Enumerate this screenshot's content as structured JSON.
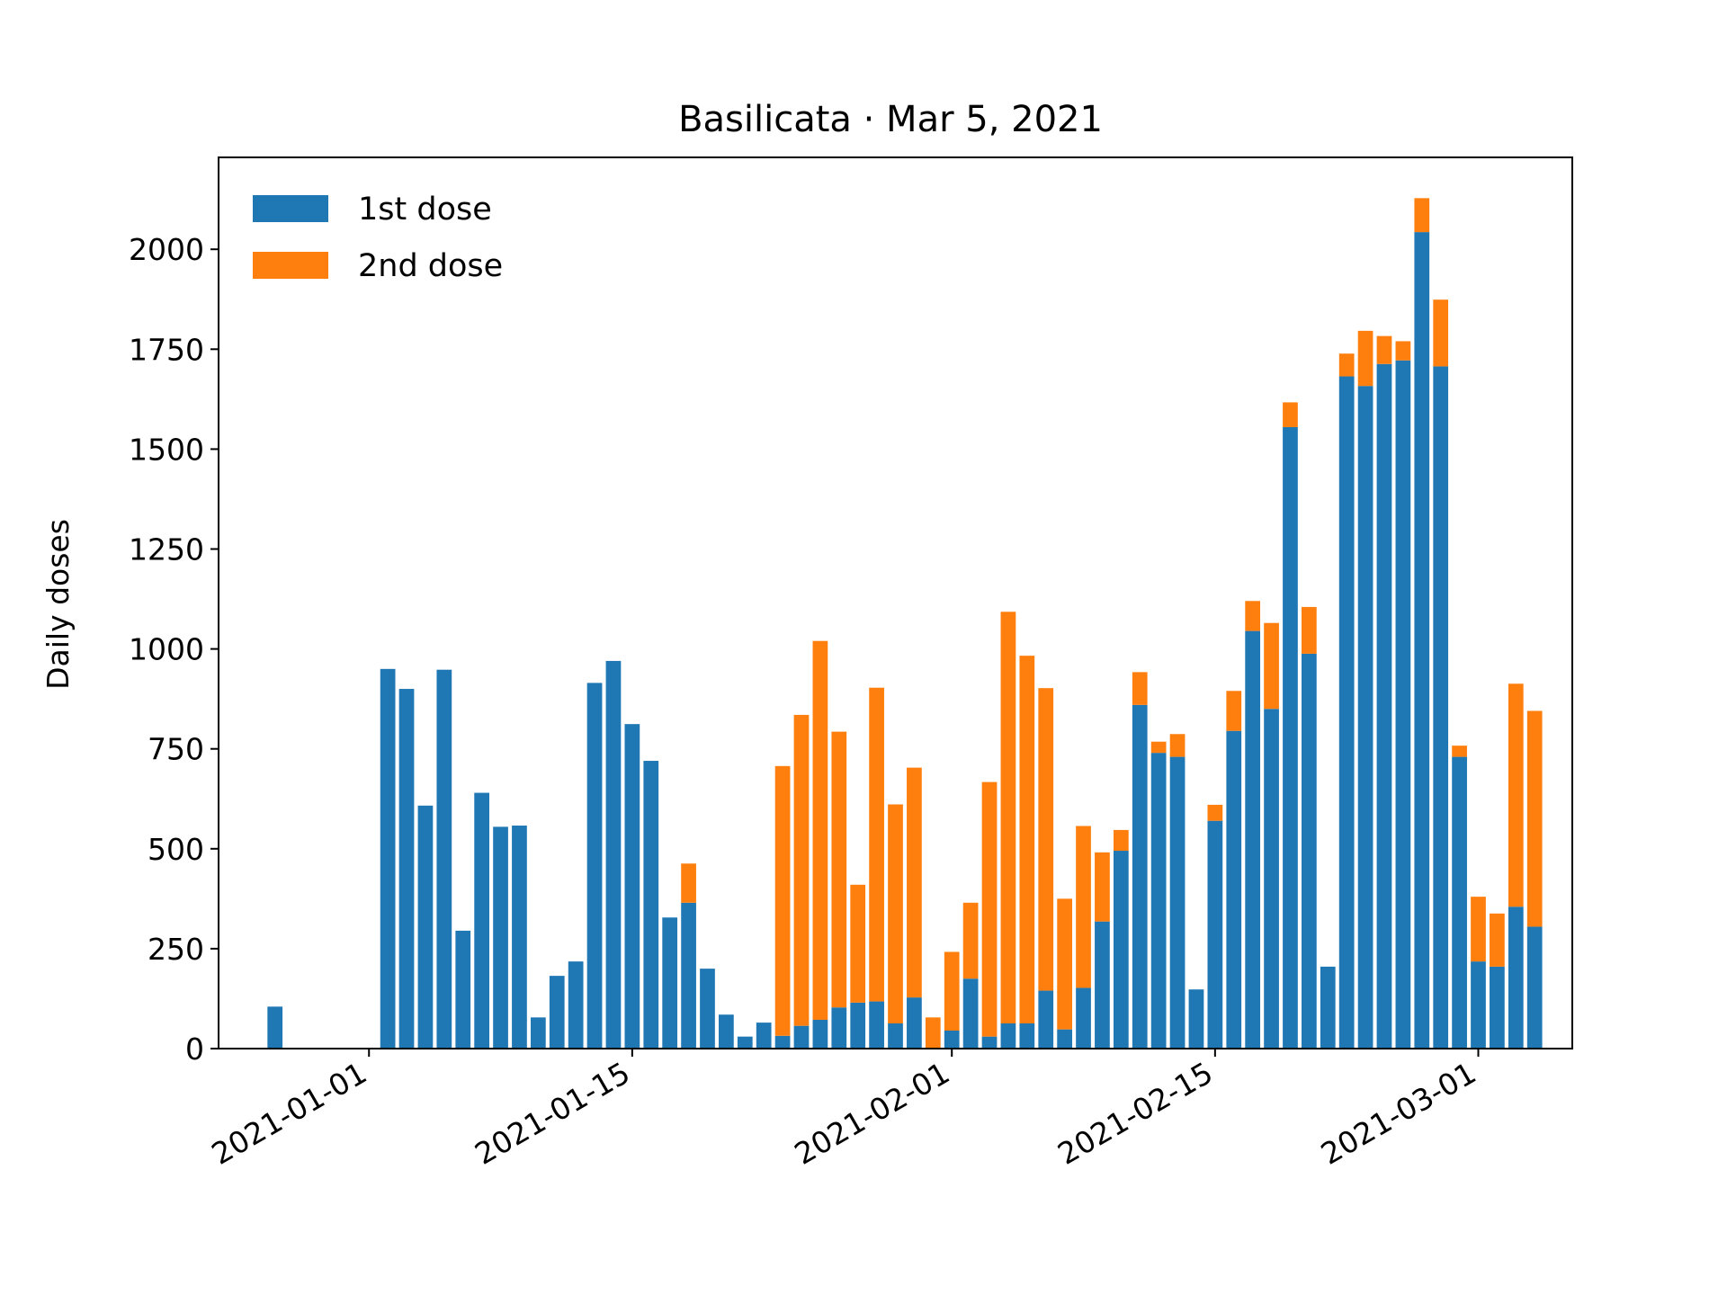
{
  "chart_data": {
    "type": "bar",
    "stacked": true,
    "title": "Basilicata · Mar 5, 2021",
    "xlabel": "",
    "ylabel": "Daily doses",
    "ylim": [
      0,
      2230
    ],
    "yticks": [
      0,
      250,
      500,
      750,
      1000,
      1250,
      1500,
      1750,
      2000
    ],
    "xlim": [
      "2020-12-24",
      "2021-03-06"
    ],
    "xticks": [
      "2021-01-01",
      "2021-01-15",
      "2021-02-01",
      "2021-02-15",
      "2021-03-01"
    ],
    "legend_position": "top-left",
    "grid": false,
    "colors": {
      "first": "#1f77b4",
      "second": "#ff7f0e"
    },
    "x": [
      "2020-12-27",
      "2020-12-28",
      "2020-12-29",
      "2020-12-30",
      "2020-12-31",
      "2021-01-01",
      "2021-01-02",
      "2021-01-03",
      "2021-01-04",
      "2021-01-05",
      "2021-01-06",
      "2021-01-07",
      "2021-01-08",
      "2021-01-09",
      "2021-01-10",
      "2021-01-11",
      "2021-01-12",
      "2021-01-13",
      "2021-01-14",
      "2021-01-15",
      "2021-01-16",
      "2021-01-17",
      "2021-01-18",
      "2021-01-19",
      "2021-01-20",
      "2021-01-21",
      "2021-01-22",
      "2021-01-23",
      "2021-01-24",
      "2021-01-25",
      "2021-01-26",
      "2021-01-27",
      "2021-01-28",
      "2021-01-29",
      "2021-01-30",
      "2021-01-31",
      "2021-02-01",
      "2021-02-02",
      "2021-02-03",
      "2021-02-04",
      "2021-02-05",
      "2021-02-06",
      "2021-02-07",
      "2021-02-08",
      "2021-02-09",
      "2021-02-10",
      "2021-02-11",
      "2021-02-12",
      "2021-02-13",
      "2021-02-14",
      "2021-02-15",
      "2021-02-16",
      "2021-02-17",
      "2021-02-18",
      "2021-02-19",
      "2021-02-20",
      "2021-02-21",
      "2021-02-22",
      "2021-02-23",
      "2021-02-24",
      "2021-02-25",
      "2021-02-26",
      "2021-02-27",
      "2021-02-28",
      "2021-03-01",
      "2021-03-02",
      "2021-03-03",
      "2021-03-04",
      "2021-03-05"
    ],
    "series": [
      {
        "name": "1st dose",
        "values": [
          105,
          0,
          0,
          0,
          0,
          0,
          950,
          900,
          608,
          948,
          295,
          640,
          555,
          558,
          78,
          182,
          218,
          915,
          970,
          812,
          720,
          328,
          365,
          200,
          85,
          30,
          65,
          32,
          57,
          72,
          103,
          115,
          118,
          63,
          128,
          0,
          45,
          175,
          30,
          63,
          63,
          145,
          48,
          152,
          318,
          495,
          860,
          740,
          730,
          148,
          570,
          795,
          1045,
          850,
          1555,
          988,
          205,
          1682,
          1658,
          1713,
          1722,
          2043,
          1707,
          730,
          218,
          205,
          355,
          305,
          0
        ]
      },
      {
        "name": "2nd dose",
        "values": [
          0,
          0,
          0,
          0,
          0,
          0,
          0,
          0,
          0,
          0,
          0,
          0,
          0,
          0,
          0,
          0,
          0,
          0,
          0,
          0,
          0,
          0,
          98,
          0,
          0,
          0,
          0,
          675,
          778,
          948,
          690,
          295,
          785,
          548,
          575,
          78,
          197,
          190,
          637,
          1030,
          920,
          757,
          327,
          405,
          173,
          52,
          82,
          28,
          57,
          0,
          40,
          100,
          75,
          215,
          62,
          117,
          0,
          57,
          138,
          70,
          48,
          85,
          167,
          28,
          162,
          133,
          558,
          540,
          0
        ]
      }
    ]
  }
}
